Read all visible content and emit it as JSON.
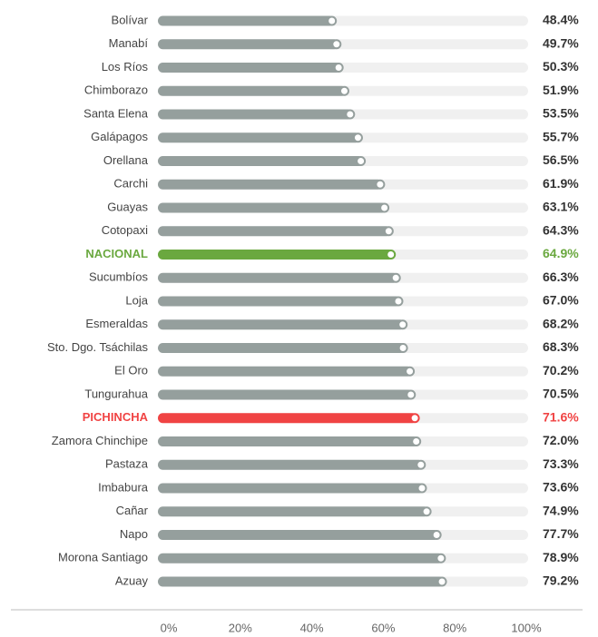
{
  "chart_data": {
    "type": "bar",
    "orientation": "horizontal",
    "categories": [
      "Bolívar",
      "Manabí",
      "Los Ríos",
      "Chimborazo",
      "Santa Elena",
      "Galápagos",
      "Orellana",
      "Carchi",
      "Guayas",
      "Cotopaxi",
      "NACIONAL",
      "Sucumbíos",
      "Loja",
      "Esmeraldas",
      "Sto. Dgo. Tsáchilas",
      "El Oro",
      "Tungurahua",
      "PICHINCHA",
      "Zamora Chinchipe",
      "Pastaza",
      "Imbabura",
      "Cañar",
      "Napo",
      "Morona Santiago",
      "Azuay"
    ],
    "values": [
      48.4,
      49.7,
      50.3,
      51.9,
      53.5,
      55.7,
      56.5,
      61.9,
      63.1,
      64.3,
      64.9,
      66.3,
      67.0,
      68.2,
      68.3,
      70.2,
      70.5,
      71.6,
      72.0,
      73.3,
      73.6,
      74.9,
      77.7,
      78.9,
      79.2
    ],
    "value_labels": [
      "48.4%",
      "49.7%",
      "50.3%",
      "51.9%",
      "53.5%",
      "55.7%",
      "56.5%",
      "61.9%",
      "63.1%",
      "64.3%",
      "64.9%",
      "66.3%",
      "67.0%",
      "68.2%",
      "68.3%",
      "70.2%",
      "70.5%",
      "71.6%",
      "72.0%",
      "73.3%",
      "73.6%",
      "74.9%",
      "77.7%",
      "78.9%",
      "79.2%"
    ],
    "colors": [
      "#959f9d",
      "#959f9d",
      "#959f9d",
      "#959f9d",
      "#959f9d",
      "#959f9d",
      "#959f9d",
      "#959f9d",
      "#959f9d",
      "#959f9d",
      "#6aa83f",
      "#959f9d",
      "#959f9d",
      "#959f9d",
      "#959f9d",
      "#959f9d",
      "#959f9d",
      "#f04343",
      "#959f9d",
      "#959f9d",
      "#959f9d",
      "#959f9d",
      "#959f9d",
      "#959f9d",
      "#959f9d"
    ],
    "xlim": [
      0,
      100
    ],
    "xticks": [
      {
        "value": 0,
        "label": "0%"
      },
      {
        "value": 20,
        "label": "20%"
      },
      {
        "value": 40,
        "label": "40%"
      },
      {
        "value": 60,
        "label": "60%"
      },
      {
        "value": 80,
        "label": "80%"
      },
      {
        "value": 100,
        "label": "100%"
      }
    ]
  }
}
